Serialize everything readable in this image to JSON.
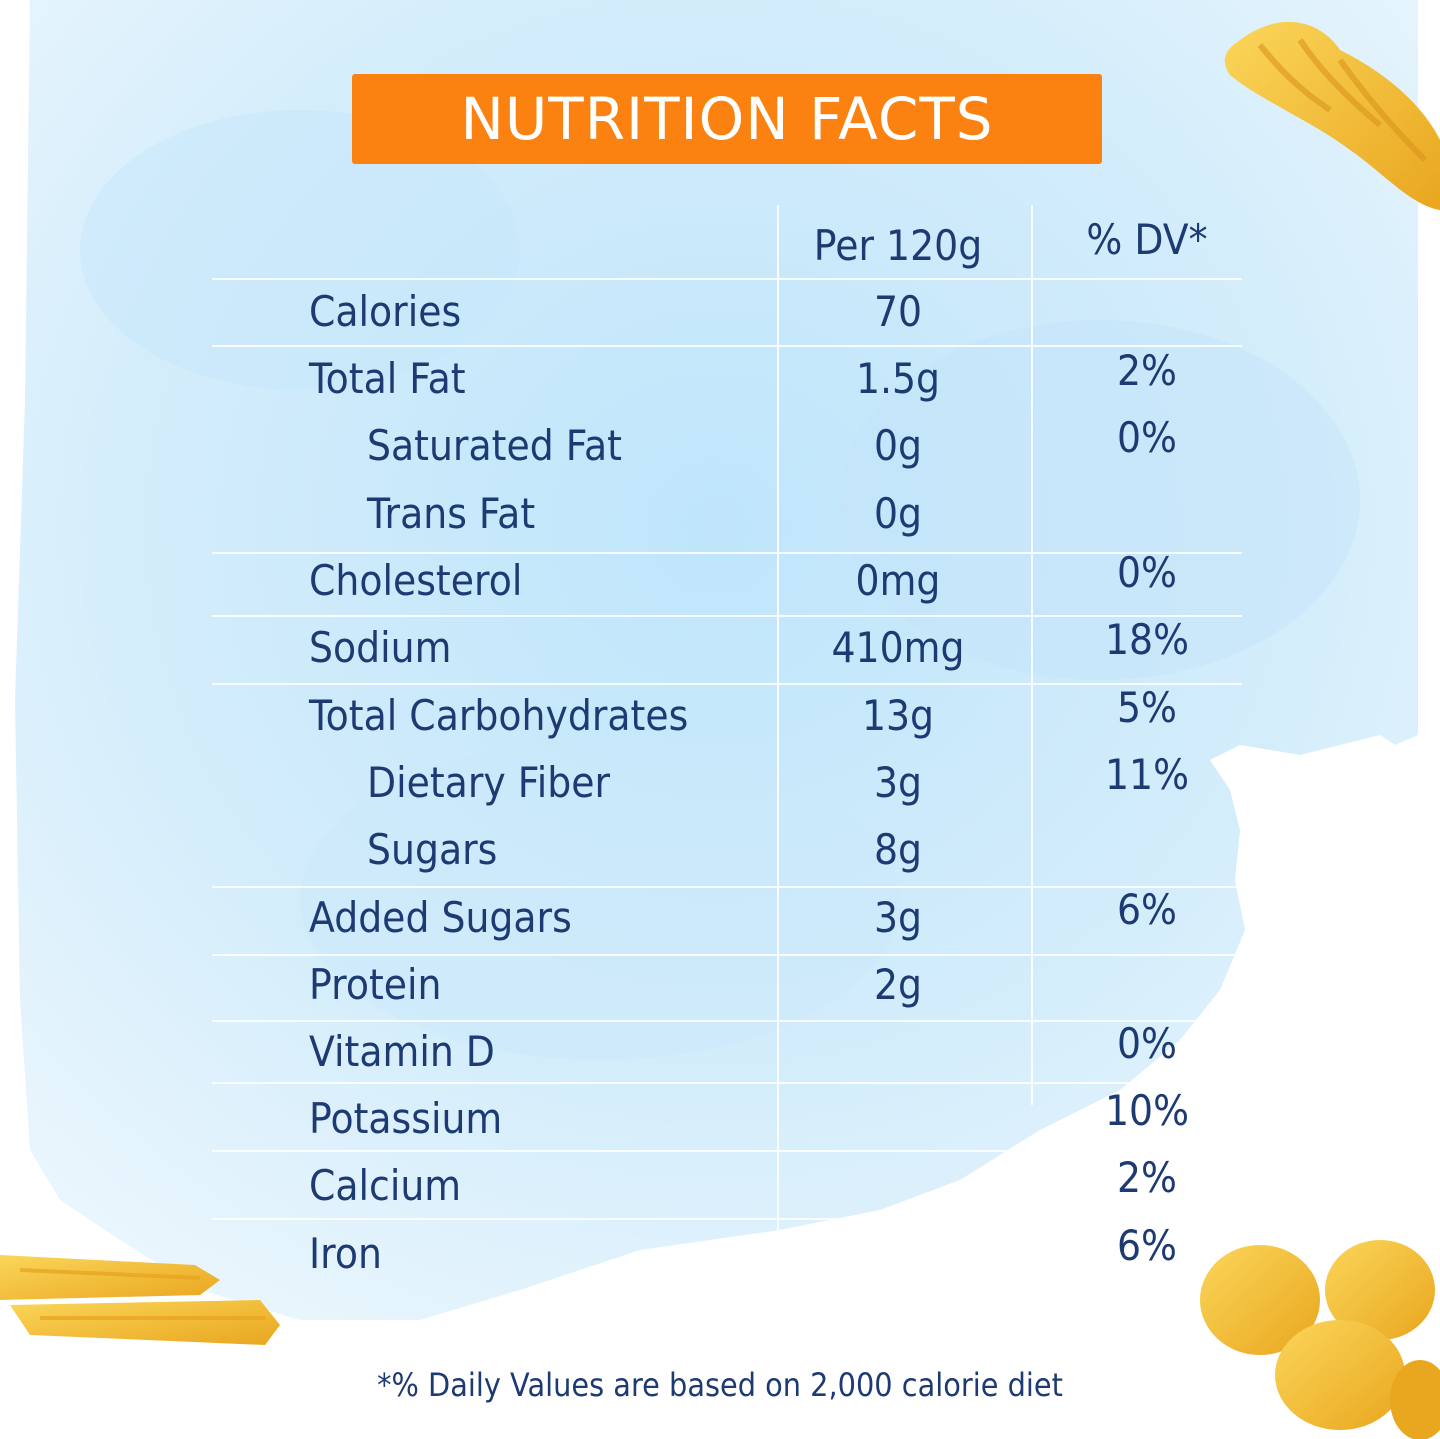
{
  "title": "NUTRITION FACTS",
  "columns": {
    "amount": "Per 120g",
    "dv": "% DV*"
  },
  "rows": [
    {
      "name": "Calories",
      "amount": "70",
      "dv": ""
    },
    {
      "name": "Total Fat",
      "amount": "1.5g",
      "dv": "2%"
    },
    {
      "name": "Saturated Fat",
      "amount": "0g",
      "dv": "0%"
    },
    {
      "name": "Trans Fat",
      "amount": "0g",
      "dv": ""
    },
    {
      "name": "Cholesterol",
      "amount": "0mg",
      "dv": "0%"
    },
    {
      "name": "Sodium",
      "amount": "410mg",
      "dv": "18%"
    },
    {
      "name": "Total Carbohydrates",
      "amount": "13g",
      "dv": "5%"
    },
    {
      "name": "Dietary Fiber",
      "amount": "3g",
      "dv": "11%"
    },
    {
      "name": "Sugars",
      "amount": "8g",
      "dv": ""
    },
    {
      "name": "Added Sugars",
      "amount": "3g",
      "dv": "6%"
    },
    {
      "name": "Protein",
      "amount": "2g",
      "dv": ""
    },
    {
      "name": "Vitamin D",
      "amount": "",
      "dv": "0%"
    },
    {
      "name": "Potassium",
      "amount": "",
      "dv": "10%"
    },
    {
      "name": "Calcium",
      "amount": "",
      "dv": "2%"
    },
    {
      "name": "Iron",
      "amount": "",
      "dv": "6%"
    }
  ],
  "footnote": "*% Daily Values are based on 2,000 calorie diet",
  "colors": {
    "title_bg": "#fb8210",
    "text": "#1d3a73",
    "sky": "#cdeafb",
    "pasta": "#f6c33a"
  }
}
